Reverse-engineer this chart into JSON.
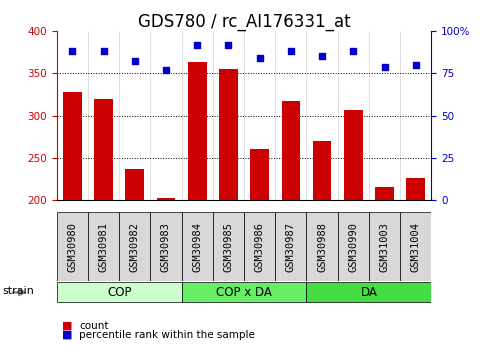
{
  "title": "GDS780 / rc_AI176331_at",
  "categories": [
    "GSM30980",
    "GSM30981",
    "GSM30982",
    "GSM30983",
    "GSM30984",
    "GSM30985",
    "GSM30986",
    "GSM30987",
    "GSM30988",
    "GSM30990",
    "GSM31003",
    "GSM31004"
  ],
  "bar_values": [
    328,
    320,
    237,
    202,
    363,
    355,
    260,
    317,
    270,
    307,
    215,
    226
  ],
  "dot_values": [
    88,
    88,
    82,
    77,
    92,
    92,
    84,
    88,
    85,
    88,
    79,
    80
  ],
  "bar_color": "#cc0000",
  "dot_color": "#0000cc",
  "bar_bottom": 200,
  "ylim_left": [
    200,
    400
  ],
  "ylim_right": [
    0,
    100
  ],
  "yticks_left": [
    200,
    250,
    300,
    350,
    400
  ],
  "yticks_right": [
    0,
    25,
    50,
    75,
    100
  ],
  "groups": [
    {
      "label": "COP",
      "start": 0,
      "end": 4,
      "color": "#ccffcc"
    },
    {
      "label": "COP x DA",
      "start": 4,
      "end": 8,
      "color": "#66ee66"
    },
    {
      "label": "DA",
      "start": 8,
      "end": 12,
      "color": "#44dd44"
    }
  ],
  "legend_items": [
    {
      "label": "count",
      "color": "#cc0000"
    },
    {
      "label": "percentile rank within the sample",
      "color": "#0000cc"
    }
  ],
  "title_fontsize": 12,
  "tick_fontsize": 7.5
}
